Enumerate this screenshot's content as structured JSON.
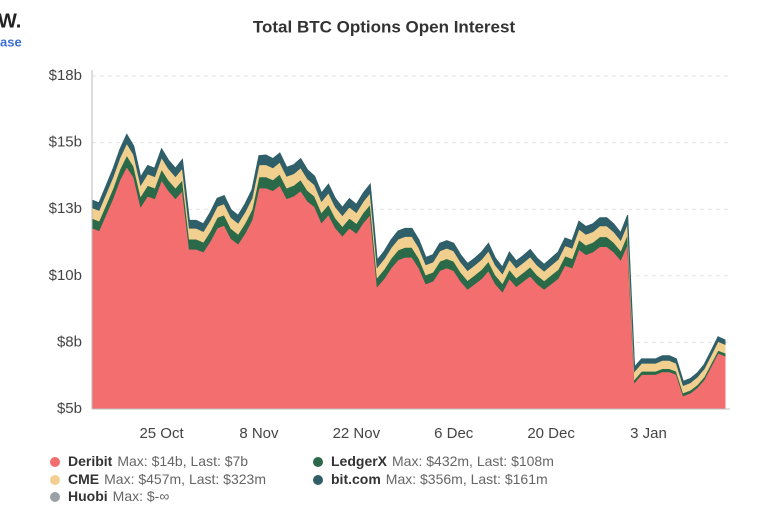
{
  "logo": [
    "W.",
    "ase"
  ],
  "chart_data": {
    "type": "stacked_area",
    "title": "Total BTC Options Open Interest",
    "categories": [
      null,
      null,
      null,
      null,
      null,
      null,
      null,
      null,
      null,
      null,
      "25 Oct",
      null,
      null,
      null,
      null,
      null,
      null,
      null,
      null,
      null,
      null,
      null,
      null,
      null,
      "8 Nov",
      null,
      null,
      null,
      null,
      null,
      null,
      null,
      null,
      null,
      null,
      null,
      null,
      null,
      "22 Nov",
      null,
      null,
      null,
      null,
      null,
      null,
      null,
      null,
      null,
      null,
      null,
      null,
      null,
      "6 Dec",
      null,
      null,
      null,
      null,
      null,
      null,
      null,
      null,
      null,
      null,
      null,
      null,
      null,
      "20 Dec",
      null,
      null,
      null,
      null,
      null,
      null,
      null,
      null,
      null,
      null,
      null,
      null,
      null,
      "3 Jan",
      null,
      null,
      null,
      null,
      null,
      null,
      null,
      null,
      null,
      null,
      null
    ],
    "ylim": [
      5,
      17.5
    ],
    "yticks": [
      {
        "value": 5,
        "label": "$5b"
      },
      {
        "value": 7.5,
        "label": "$8b"
      },
      {
        "value": 10,
        "label": "$10b"
      },
      {
        "value": 12.5,
        "label": "$13b"
      },
      {
        "value": 15,
        "label": "$15b"
      },
      {
        "value": 17.5,
        "label": "$18b"
      }
    ],
    "grid": true,
    "series": [
      {
        "name": "Deribit",
        "legend_text": "Max: $14b, Last: $7b",
        "color": "#f36f6f",
        "values": [
          11.8,
          11.7,
          12.3,
          12.9,
          13.6,
          14.1,
          13.7,
          12.6,
          13.0,
          12.9,
          13.6,
          13.2,
          12.9,
          13.2,
          11.0,
          11.0,
          10.9,
          11.3,
          11.8,
          11.9,
          11.4,
          11.2,
          11.6,
          12.1,
          13.3,
          13.3,
          13.2,
          13.4,
          12.9,
          13.0,
          13.2,
          12.8,
          12.6,
          12.0,
          12.3,
          11.8,
          11.5,
          11.8,
          11.6,
          12.0,
          12.3,
          9.6,
          9.9,
          10.3,
          10.6,
          10.7,
          10.7,
          10.3,
          9.7,
          9.8,
          10.2,
          10.3,
          10.2,
          9.8,
          9.5,
          9.7,
          9.9,
          10.2,
          9.7,
          9.4,
          9.9,
          9.6,
          9.8,
          10.0,
          9.7,
          9.5,
          9.7,
          9.9,
          10.4,
          10.3,
          11.0,
          10.8,
          10.9,
          11.1,
          11.1,
          10.9,
          10.6,
          11.2,
          6.0,
          6.3,
          6.3,
          6.3,
          6.4,
          6.4,
          6.3,
          5.5,
          5.6,
          5.8,
          6.1,
          6.6,
          7.1,
          7.0
        ]
      },
      {
        "name": "LedgerX",
        "legend_text": "Max: $432m, Last: $108m",
        "color": "#2b6a48",
        "values": [
          0.36,
          0.36,
          0.37,
          0.38,
          0.4,
          0.43,
          0.41,
          0.39,
          0.4,
          0.4,
          0.41,
          0.4,
          0.4,
          0.41,
          0.38,
          0.38,
          0.37,
          0.38,
          0.39,
          0.39,
          0.38,
          0.37,
          0.38,
          0.39,
          0.42,
          0.42,
          0.41,
          0.42,
          0.4,
          0.4,
          0.41,
          0.4,
          0.39,
          0.38,
          0.39,
          0.37,
          0.36,
          0.37,
          0.37,
          0.38,
          0.39,
          0.34,
          0.35,
          0.36,
          0.37,
          0.37,
          0.37,
          0.36,
          0.34,
          0.34,
          0.35,
          0.35,
          0.35,
          0.34,
          0.33,
          0.33,
          0.34,
          0.35,
          0.33,
          0.32,
          0.34,
          0.33,
          0.33,
          0.34,
          0.33,
          0.32,
          0.33,
          0.34,
          0.35,
          0.35,
          0.36,
          0.36,
          0.36,
          0.37,
          0.37,
          0.36,
          0.35,
          0.37,
          0.12,
          0.12,
          0.12,
          0.12,
          0.12,
          0.12,
          0.12,
          0.11,
          0.11,
          0.11,
          0.11,
          0.11,
          0.11,
          0.108
        ]
      },
      {
        "name": "CME",
        "legend_text": "Max: $457m, Last: $323m",
        "color": "#f1cf8e",
        "values": [
          0.4,
          0.4,
          0.41,
          0.42,
          0.43,
          0.45,
          0.44,
          0.42,
          0.43,
          0.43,
          0.44,
          0.43,
          0.43,
          0.44,
          0.41,
          0.41,
          0.4,
          0.41,
          0.42,
          0.42,
          0.41,
          0.41,
          0.42,
          0.43,
          0.45,
          0.457,
          0.45,
          0.45,
          0.44,
          0.44,
          0.45,
          0.44,
          0.43,
          0.42,
          0.43,
          0.42,
          0.41,
          0.42,
          0.41,
          0.42,
          0.43,
          0.38,
          0.39,
          0.4,
          0.41,
          0.41,
          0.41,
          0.4,
          0.38,
          0.38,
          0.39,
          0.39,
          0.39,
          0.38,
          0.37,
          0.37,
          0.38,
          0.39,
          0.37,
          0.36,
          0.38,
          0.37,
          0.37,
          0.38,
          0.37,
          0.36,
          0.37,
          0.38,
          0.39,
          0.39,
          0.4,
          0.4,
          0.4,
          0.41,
          0.41,
          0.4,
          0.39,
          0.41,
          0.3,
          0.3,
          0.3,
          0.3,
          0.31,
          0.31,
          0.3,
          0.28,
          0.28,
          0.29,
          0.3,
          0.31,
          0.33,
          0.323
        ]
      },
      {
        "name": "bit.com",
        "legend_text": "Max: $356m, Last: $161m",
        "color": "#2f5f69",
        "values": [
          0.28,
          0.28,
          0.29,
          0.3,
          0.31,
          0.33,
          0.32,
          0.3,
          0.31,
          0.31,
          0.32,
          0.31,
          0.31,
          0.32,
          0.29,
          0.29,
          0.28,
          0.29,
          0.3,
          0.3,
          0.29,
          0.29,
          0.3,
          0.31,
          0.34,
          0.356,
          0.34,
          0.34,
          0.33,
          0.33,
          0.34,
          0.33,
          0.32,
          0.31,
          0.32,
          0.31,
          0.3,
          0.31,
          0.3,
          0.31,
          0.32,
          0.27,
          0.28,
          0.29,
          0.3,
          0.3,
          0.3,
          0.29,
          0.27,
          0.27,
          0.28,
          0.28,
          0.28,
          0.27,
          0.26,
          0.26,
          0.27,
          0.28,
          0.26,
          0.25,
          0.27,
          0.26,
          0.26,
          0.27,
          0.26,
          0.25,
          0.26,
          0.27,
          0.28,
          0.28,
          0.29,
          0.29,
          0.29,
          0.3,
          0.3,
          0.29,
          0.28,
          0.3,
          0.16,
          0.16,
          0.16,
          0.16,
          0.17,
          0.17,
          0.16,
          0.15,
          0.15,
          0.15,
          0.16,
          0.16,
          0.17,
          0.161
        ]
      },
      {
        "name": "Huobi",
        "legend_text": "Max: $-∞",
        "color": "#9aa0a6",
        "values": [
          null,
          null,
          null,
          null,
          null,
          null,
          null,
          null,
          null,
          null,
          null,
          null,
          null,
          null,
          null,
          null,
          null,
          null,
          null,
          null,
          null,
          null,
          null,
          null,
          null,
          null,
          null,
          null,
          null,
          null,
          null,
          null,
          null,
          null,
          null,
          null,
          null,
          null,
          null,
          null,
          null,
          null,
          null,
          null,
          null,
          null,
          null,
          null,
          null,
          null,
          null,
          null,
          null,
          null,
          null,
          null,
          null,
          null,
          null,
          null,
          null,
          null,
          null,
          null,
          null,
          null,
          null,
          null,
          null,
          null,
          null,
          null,
          null,
          null,
          null,
          null,
          null,
          null,
          null,
          null,
          null,
          null,
          null,
          null,
          null,
          null,
          null,
          null,
          null,
          null,
          null,
          null
        ]
      }
    ]
  }
}
